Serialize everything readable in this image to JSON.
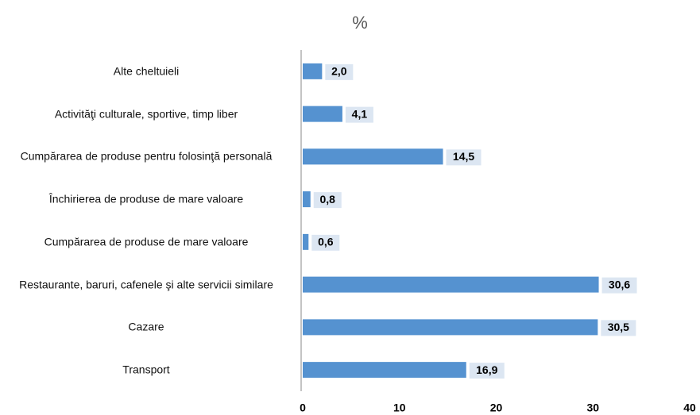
{
  "chart_data": {
    "type": "bar",
    "orientation": "horizontal",
    "title": "%",
    "categories": [
      "Alte cheltuieli",
      "Activităţi culturale, sportive, timp liber",
      "Cumpărarea de produse pentru folosinţă personală",
      "Închirierea de produse de mare valoare",
      "Cumpărarea de produse de mare valoare",
      "Restaurante, baruri, cafenele şi alte servicii similare",
      "Cazare",
      "Transport"
    ],
    "values": [
      2.0,
      4.1,
      14.5,
      0.8,
      0.6,
      30.6,
      30.5,
      16.9
    ],
    "value_labels": [
      "2,0",
      "4,1",
      "14,5",
      "0,8",
      "0,6",
      "30,6",
      "30,5",
      "16,9"
    ],
    "color": "#5592d0",
    "xlim": [
      0,
      40
    ],
    "xticks": [
      0,
      10,
      20,
      30,
      40
    ],
    "grid": false
  }
}
